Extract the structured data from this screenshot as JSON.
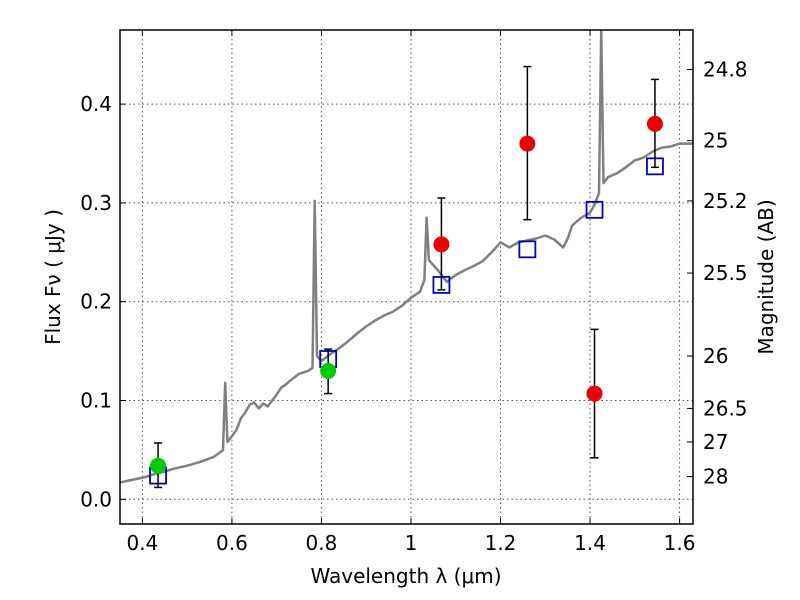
{
  "chart_data": {
    "type": "scatter",
    "xlabel": "Wavelength  λ (μm)",
    "ylabel": "Flux  Fν  ( μJy )",
    "ylabel_right": "Magnitude (AB)",
    "xlim": [
      0.35,
      1.63
    ],
    "ylim": [
      -0.025,
      0.475
    ],
    "grid": true,
    "x_ticks": [
      {
        "value": 0.4,
        "label": "0.4"
      },
      {
        "value": 0.6,
        "label": "0.6"
      },
      {
        "value": 0.8,
        "label": "0.8"
      },
      {
        "value": 1.0,
        "label": "1"
      },
      {
        "value": 1.2,
        "label": "1.2"
      },
      {
        "value": 1.4,
        "label": "1.4"
      },
      {
        "value": 1.6,
        "label": "1.6"
      }
    ],
    "y_ticks": [
      {
        "value": 0.0,
        "label": "0.0"
      },
      {
        "value": 0.1,
        "label": "0.1"
      },
      {
        "value": 0.2,
        "label": "0.2"
      },
      {
        "value": 0.3,
        "label": "0.3"
      },
      {
        "value": 0.4,
        "label": "0.4"
      }
    ],
    "right_ticks": [
      {
        "flux": 0.435,
        "label": "24.8"
      },
      {
        "flux": 0.363,
        "label": "25"
      },
      {
        "flux": 0.302,
        "label": "25.2"
      },
      {
        "flux": 0.229,
        "label": "25.5"
      },
      {
        "flux": 0.145,
        "label": "26"
      },
      {
        "flux": 0.092,
        "label": "26.5"
      },
      {
        "flux": 0.058,
        "label": "27"
      },
      {
        "flux": 0.023,
        "label": "28"
      }
    ],
    "colors": {
      "sed": "#808080",
      "model_points": "#0000cc",
      "detections_red": "#ee0000",
      "detections_green": "#00cc00",
      "errorbar": "#000000",
      "grid": "#555555"
    },
    "series": [
      {
        "kind": "line",
        "points": [
          [
            0.35,
            0.017
          ],
          [
            0.37,
            0.019
          ],
          [
            0.39,
            0.021
          ],
          [
            0.41,
            0.023
          ],
          [
            0.43,
            0.026
          ],
          [
            0.45,
            0.028
          ],
          [
            0.47,
            0.031
          ],
          [
            0.5,
            0.034
          ],
          [
            0.53,
            0.038
          ],
          [
            0.56,
            0.043
          ],
          [
            0.575,
            0.048
          ],
          [
            0.58,
            0.05
          ],
          [
            0.585,
            0.118
          ],
          [
            0.59,
            0.058
          ],
          [
            0.6,
            0.064
          ],
          [
            0.61,
            0.07
          ],
          [
            0.62,
            0.082
          ],
          [
            0.63,
            0.088
          ],
          [
            0.64,
            0.096
          ],
          [
            0.65,
            0.098
          ],
          [
            0.66,
            0.092
          ],
          [
            0.67,
            0.097
          ],
          [
            0.68,
            0.094
          ],
          [
            0.69,
            0.1
          ],
          [
            0.7,
            0.106
          ],
          [
            0.71,
            0.113
          ],
          [
            0.72,
            0.116
          ],
          [
            0.73,
            0.12
          ],
          [
            0.75,
            0.127
          ],
          [
            0.77,
            0.13
          ],
          [
            0.78,
            0.133
          ],
          [
            0.785,
            0.302
          ],
          [
            0.79,
            0.145
          ],
          [
            0.8,
            0.14
          ],
          [
            0.82,
            0.147
          ],
          [
            0.84,
            0.153
          ],
          [
            0.86,
            0.16
          ],
          [
            0.88,
            0.168
          ],
          [
            0.9,
            0.175
          ],
          [
            0.92,
            0.181
          ],
          [
            0.94,
            0.186
          ],
          [
            0.96,
            0.19
          ],
          [
            0.98,
            0.196
          ],
          [
            1.0,
            0.204
          ],
          [
            1.02,
            0.21
          ],
          [
            1.03,
            0.222
          ],
          [
            1.035,
            0.285
          ],
          [
            1.04,
            0.242
          ],
          [
            1.06,
            0.232
          ],
          [
            1.08,
            0.22
          ],
          [
            1.1,
            0.227
          ],
          [
            1.12,
            0.232
          ],
          [
            1.14,
            0.236
          ],
          [
            1.16,
            0.241
          ],
          [
            1.18,
            0.25
          ],
          [
            1.2,
            0.26
          ],
          [
            1.22,
            0.255
          ],
          [
            1.24,
            0.26
          ],
          [
            1.26,
            0.262
          ],
          [
            1.28,
            0.264
          ],
          [
            1.3,
            0.267
          ],
          [
            1.32,
            0.263
          ],
          [
            1.34,
            0.255
          ],
          [
            1.35,
            0.264
          ],
          [
            1.36,
            0.277
          ],
          [
            1.38,
            0.285
          ],
          [
            1.4,
            0.29
          ],
          [
            1.41,
            0.298
          ],
          [
            1.42,
            0.31
          ],
          [
            1.425,
            0.475
          ],
          [
            1.43,
            0.32
          ],
          [
            1.44,
            0.326
          ],
          [
            1.46,
            0.33
          ],
          [
            1.48,
            0.336
          ],
          [
            1.5,
            0.343
          ],
          [
            1.52,
            0.346
          ],
          [
            1.54,
            0.352
          ],
          [
            1.56,
            0.356
          ],
          [
            1.58,
            0.357
          ],
          [
            1.6,
            0.36
          ],
          [
            1.63,
            0.36
          ]
        ]
      },
      {
        "kind": "model-squares",
        "points": [
          [
            0.435,
            0.024
          ],
          [
            0.815,
            0.142
          ],
          [
            1.068,
            0.217
          ],
          [
            1.26,
            0.253
          ],
          [
            1.41,
            0.293
          ],
          [
            1.545,
            0.337
          ]
        ]
      },
      {
        "kind": "green-detections",
        "points": [
          {
            "x": 0.435,
            "y": 0.034,
            "low": 0.012,
            "high": 0.057
          },
          {
            "x": 0.815,
            "y": 0.13,
            "low": 0.107,
            "high": 0.152
          }
        ]
      },
      {
        "kind": "red-detections",
        "points": [
          {
            "x": 1.068,
            "y": 0.258,
            "low": 0.212,
            "high": 0.305
          },
          {
            "x": 1.26,
            "y": 0.36,
            "low": 0.283,
            "high": 0.438
          },
          {
            "x": 1.41,
            "y": 0.107,
            "low": 0.042,
            "high": 0.172
          },
          {
            "x": 1.545,
            "y": 0.38,
            "low": 0.336,
            "high": 0.425
          }
        ]
      }
    ]
  }
}
